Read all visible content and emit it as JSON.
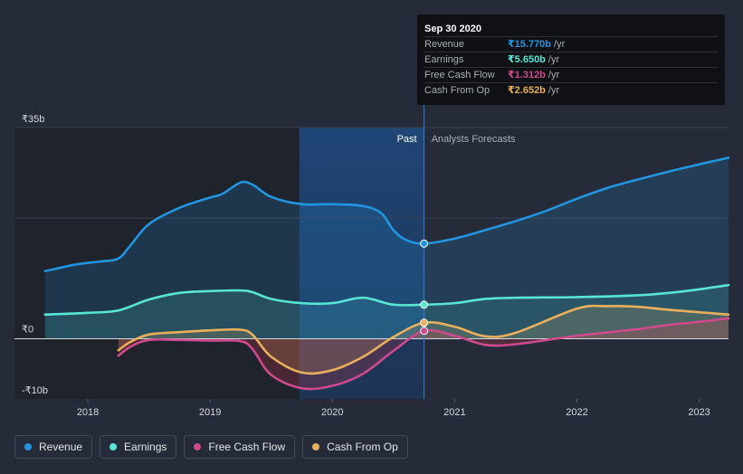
{
  "chart_data": {
    "type": "line",
    "title": "",
    "currency_axis_labels": [
      "₹35b",
      "₹0",
      "-₹10b"
    ],
    "ylim": [
      -10,
      35
    ],
    "x_ticks": [
      "2018",
      "2019",
      "2020",
      "2021",
      "2022",
      "2023"
    ],
    "x_tick_values": [
      2018,
      2019,
      2020,
      2021,
      2022,
      2023
    ],
    "xlim": [
      2017.4,
      2023.24
    ],
    "past_label": "Past",
    "forecast_label": "Analysts Forecasts",
    "past_end": 2020.75,
    "highlight_start": 2019.73,
    "series": [
      {
        "name": "Revenue",
        "color": "#2394df",
        "fill": true,
        "x": [
          2017.65,
          2017.9,
          2018.1,
          2018.25,
          2018.35,
          2018.5,
          2018.75,
          2019.0,
          2019.1,
          2019.25,
          2019.35,
          2019.5,
          2019.75,
          2020.0,
          2020.25,
          2020.4,
          2020.5,
          2020.6,
          2020.75,
          2021.0,
          2021.25,
          2021.5,
          2021.75,
          2022.0,
          2022.25,
          2022.5,
          2022.75,
          2023.0,
          2023.24
        ],
        "y": [
          11.2,
          12.3,
          12.8,
          13.3,
          15.5,
          19.0,
          21.7,
          23.4,
          24.0,
          25.9,
          25.5,
          23.5,
          22.3,
          22.3,
          22.0,
          20.8,
          18.0,
          16.4,
          15.77,
          16.6,
          18.0,
          19.5,
          21.2,
          23.2,
          25.0,
          26.4,
          27.7,
          28.9,
          30.0
        ]
      },
      {
        "name": "Earnings",
        "color": "#58e6d5",
        "fill": true,
        "x": [
          2017.65,
          2018.0,
          2018.25,
          2018.5,
          2018.75,
          2019.0,
          2019.25,
          2019.35,
          2019.5,
          2019.75,
          2020.0,
          2020.25,
          2020.5,
          2020.75,
          2021.0,
          2021.25,
          2021.5,
          2022.0,
          2022.5,
          2022.75,
          2023.0,
          2023.24
        ],
        "y": [
          4.0,
          4.3,
          4.7,
          6.5,
          7.6,
          7.9,
          8.0,
          7.7,
          6.6,
          5.9,
          5.9,
          6.8,
          5.65,
          5.65,
          5.9,
          6.6,
          6.8,
          6.9,
          7.2,
          7.6,
          8.2,
          8.9
        ]
      },
      {
        "name": "Free Cash Flow",
        "color": "#ce4a8d",
        "fill": true,
        "x": [
          2018.25,
          2018.35,
          2018.5,
          2018.75,
          2019.0,
          2019.25,
          2019.35,
          2019.5,
          2019.75,
          2020.0,
          2020.25,
          2020.5,
          2020.75,
          2021.0,
          2021.25,
          2021.5,
          2022.0,
          2022.5,
          2022.75,
          2023.0,
          2023.24
        ],
        "y": [
          -2.8,
          -1.3,
          -0.2,
          -0.2,
          -0.3,
          -0.4,
          -1.8,
          -6.0,
          -8.2,
          -7.8,
          -5.8,
          -2.0,
          1.312,
          0.5,
          -1.0,
          -0.9,
          0.5,
          1.6,
          2.3,
          2.8,
          3.4
        ]
      },
      {
        "name": "Cash From Op",
        "color": "#e8b05c",
        "fill": true,
        "x": [
          2018.25,
          2018.35,
          2018.5,
          2018.75,
          2019.0,
          2019.25,
          2019.35,
          2019.5,
          2019.75,
          2020.0,
          2020.25,
          2020.5,
          2020.75,
          2021.0,
          2021.25,
          2021.5,
          2022.0,
          2022.25,
          2022.5,
          2022.75,
          2023.0,
          2023.24
        ],
        "y": [
          -1.9,
          -0.5,
          0.7,
          1.1,
          1.4,
          1.5,
          0.6,
          -3.0,
          -5.6,
          -5.2,
          -3.0,
          0.3,
          2.652,
          2.0,
          0.4,
          1.0,
          5.0,
          5.4,
          5.3,
          4.8,
          4.4,
          4.0
        ]
      }
    ],
    "markers_at": 2020.75,
    "legend_position": "bottom-left"
  },
  "tooltip": {
    "date": "Sep 30 2020",
    "rows": [
      {
        "label": "Revenue",
        "value": "₹15.770b",
        "unit": "/yr",
        "color": "#2394df"
      },
      {
        "label": "Earnings",
        "value": "₹5.650b",
        "unit": "/yr",
        "color": "#58e6d5"
      },
      {
        "label": "Free Cash Flow",
        "value": "₹1.312b",
        "unit": "/yr",
        "color": "#ce4a8d"
      },
      {
        "label": "Cash From Op",
        "value": "₹2.652b",
        "unit": "/yr",
        "color": "#e8b05c"
      }
    ]
  },
  "legend": [
    {
      "label": "Revenue",
      "color": "#2394df"
    },
    {
      "label": "Earnings",
      "color": "#58e6d5"
    },
    {
      "label": "Free Cash Flow",
      "color": "#ce4a8d"
    },
    {
      "label": "Cash From Op",
      "color": "#e8b05c"
    }
  ]
}
